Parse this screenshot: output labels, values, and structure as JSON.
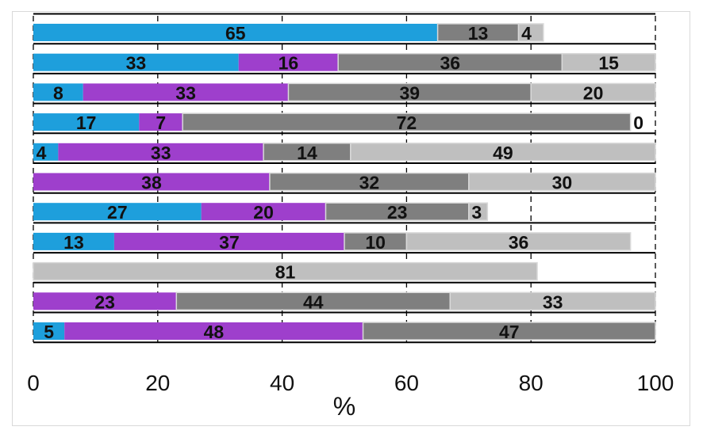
{
  "chart_data": {
    "type": "bar",
    "orientation": "horizontal",
    "stacked": true,
    "xlabel": "%",
    "xlim": [
      0,
      100
    ],
    "xticks": [
      "0",
      "20",
      "40",
      "60",
      "80",
      "100"
    ],
    "grid": "vertical dashed",
    "colors": [
      "#1e9fdc",
      "#9e3fcc",
      "#7f7f7f",
      "#bfbfbf"
    ],
    "rows": [
      [
        65,
        0,
        13,
        4
      ],
      [
        33,
        16,
        36,
        15
      ],
      [
        8,
        33,
        39,
        20
      ],
      [
        17,
        7,
        72,
        0
      ],
      [
        4,
        33,
        14,
        49
      ],
      [
        0,
        38,
        32,
        30
      ],
      [
        27,
        20,
        23,
        3
      ],
      [
        13,
        37,
        10,
        36
      ],
      [
        0,
        0,
        0,
        81
      ],
      [
        0,
        23,
        44,
        33
      ],
      [
        5,
        48,
        47,
        0
      ]
    ],
    "labels": [
      [
        "65",
        "",
        "13",
        "4"
      ],
      [
        "33",
        "16",
        "36",
        "15"
      ],
      [
        "8",
        "33",
        "39",
        "20"
      ],
      [
        "17",
        "7",
        "72",
        "0"
      ],
      [
        "4",
        "33",
        "14",
        "49"
      ],
      [
        "",
        "38",
        "32",
        "30"
      ],
      [
        "27",
        "20",
        "23",
        "3"
      ],
      [
        "13",
        "37",
        "10",
        "36"
      ],
      [
        "",
        "",
        "",
        "81"
      ],
      [
        "",
        "23",
        "44",
        "33"
      ],
      [
        "5",
        "48",
        "47",
        ""
      ]
    ]
  }
}
